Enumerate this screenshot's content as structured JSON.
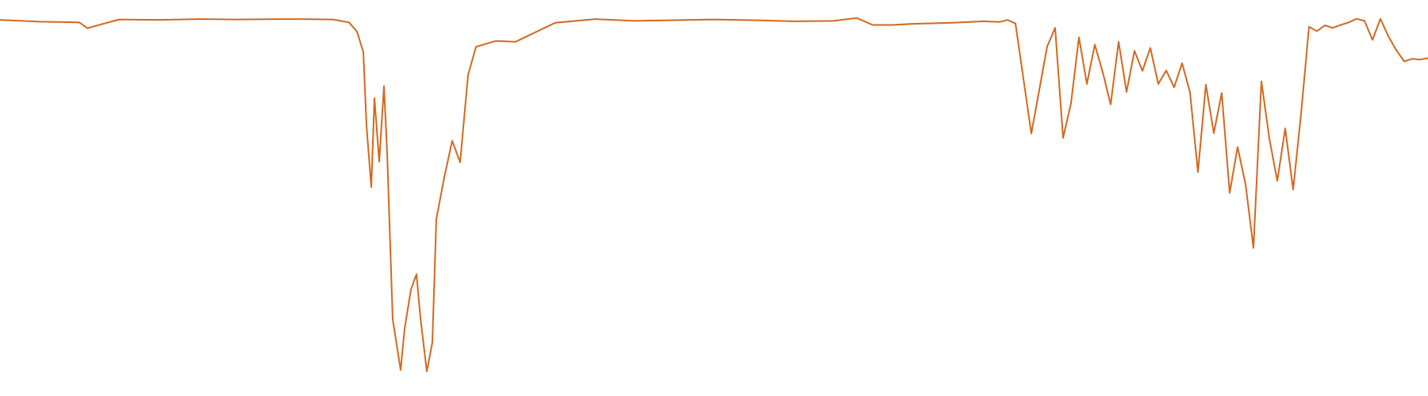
{
  "chart_data": {
    "type": "line",
    "title": "",
    "xlabel": "",
    "ylabel": "",
    "xlim": [
      0,
      1800
    ],
    "ylim": [
      0,
      100
    ],
    "grid": false,
    "legend": "none",
    "series": [
      {
        "color": "#d2691e",
        "x": [
          0,
          50,
          100,
          110,
          150,
          200,
          250,
          300,
          350,
          380,
          420,
          440,
          450,
          458,
          462,
          468,
          472,
          478,
          484,
          488,
          495,
          505,
          510,
          518,
          525,
          530,
          538,
          545,
          550,
          560,
          570,
          580,
          590,
          600,
          625,
          650,
          700,
          750,
          800,
          850,
          900,
          950,
          1000,
          1050,
          1080,
          1100,
          1125,
          1150,
          1200,
          1240,
          1260,
          1270,
          1280,
          1300,
          1320,
          1330,
          1340,
          1350,
          1360,
          1370,
          1380,
          1390,
          1400,
          1410,
          1420,
          1430,
          1440,
          1450,
          1460,
          1470,
          1480,
          1490,
          1500,
          1510,
          1520,
          1530,
          1540,
          1550,
          1560,
          1570,
          1580,
          1590,
          1600,
          1610,
          1620,
          1630,
          1640,
          1650,
          1660,
          1670,
          1680,
          1690,
          1700,
          1710,
          1720,
          1730,
          1740,
          1750,
          1760,
          1770,
          1780,
          1790,
          1800
        ],
        "y": [
          98.9,
          98.4,
          98.2,
          96.6,
          99.0,
          98.9,
          99.1,
          99.0,
          99.1,
          99.1,
          99.0,
          98.2,
          95.7,
          90.0,
          69.8,
          53.0,
          77.4,
          60.0,
          80.7,
          62.4,
          16.7,
          2.8,
          14.1,
          24.9,
          29.1,
          17.0,
          2.4,
          10.4,
          44.2,
          55.7,
          65.7,
          59.8,
          83.8,
          91.5,
          93.1,
          92.9,
          98.1,
          99.1,
          98.6,
          98.8,
          99.0,
          98.8,
          98.5,
          98.6,
          99.4,
          97.5,
          97.5,
          97.8,
          98.1,
          98.5,
          98.3,
          98.9,
          97.9,
          67.7,
          91.6,
          96.7,
          66.5,
          76.0,
          94.1,
          81.3,
          92.1,
          84.5,
          75.7,
          92.9,
          79.1,
          90.4,
          84.9,
          91.2,
          81.3,
          85.0,
          80.4,
          87.0,
          79.0,
          57.1,
          81.1,
          67.8,
          78.8,
          51.4,
          64.0,
          53.8,
          36.3,
          82.0,
          66.4,
          54.7,
          69.1,
          52.3,
          73.1,
          97.0,
          95.8,
          97.4,
          96.7,
          97.5,
          98.2,
          99.2,
          98.6,
          93.4,
          99.2,
          94.4,
          90.6,
          87.5,
          88.2,
          88.0,
          88.4
        ]
      }
    ]
  }
}
